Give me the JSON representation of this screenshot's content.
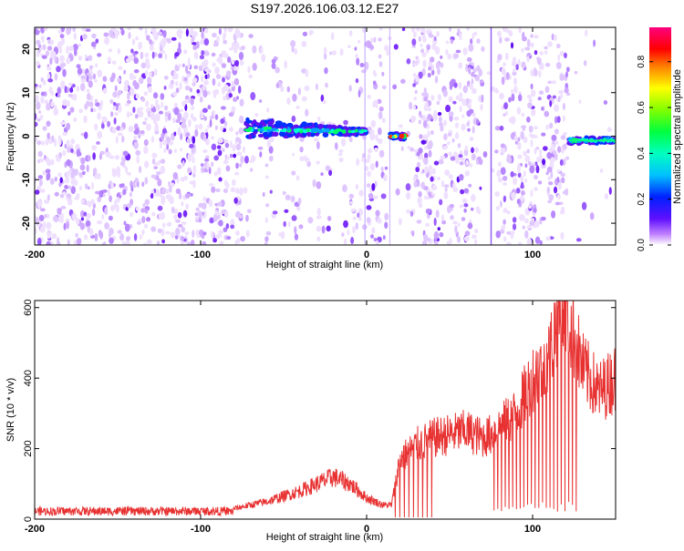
{
  "title": "S197.2026.106.03.12.E27",
  "chart_data": [
    {
      "type": "heatmap",
      "xlabel": "Height of straight line (km)",
      "ylabel": "Frequency (Hz)",
      "xlim": [
        -200,
        150
      ],
      "ylim": [
        -25,
        25
      ],
      "xticks": [
        -200,
        -100,
        0,
        100
      ],
      "yticks": [
        -20,
        -10,
        0,
        10,
        20
      ],
      "colorbar": {
        "label": "Normalized spectral amplitude",
        "range": [
          0,
          0.95
        ],
        "ticks": [
          0.0,
          0.2,
          0.4,
          0.6,
          0.8
        ],
        "colormap": "rainbow (white-violet-blue-cyan-green-yellow-red-magenta)"
      },
      "features": [
        {
          "x_start": -73,
          "x_end": 0,
          "freq_center": 1,
          "max_amplitude": 0.5
        },
        {
          "x_start": 14,
          "x_end": 24,
          "freq_center": 0,
          "max_amplitude": 0.8
        },
        {
          "x_start": 122,
          "x_end": 150,
          "freq_center": -1,
          "max_amplitude": 0.45
        }
      ]
    },
    {
      "type": "line",
      "xlabel": "Height of straight line (km)",
      "ylabel": "SNR (10 * v/v)",
      "xlim": [
        -200,
        150
      ],
      "ylim": [
        0,
        620
      ],
      "xticks": [
        -200,
        -100,
        0,
        100
      ],
      "yticks": [
        0,
        200,
        400,
        600
      ],
      "color": "#e83232",
      "envelope": {
        "x": [
          -200,
          -150,
          -100,
          -80,
          -60,
          -40,
          -20,
          -10,
          0,
          10,
          15,
          20,
          30,
          40,
          50,
          60,
          70,
          75,
          80,
          90,
          100,
          110,
          115,
          120,
          125,
          130,
          140,
          150
        ],
        "y": [
          20,
          20,
          22,
          30,
          50,
          80,
          120,
          100,
          60,
          40,
          40,
          170,
          210,
          230,
          240,
          250,
          230,
          240,
          260,
          300,
          400,
          460,
          580,
          600,
          520,
          430,
          360,
          400
        ]
      }
    }
  ]
}
